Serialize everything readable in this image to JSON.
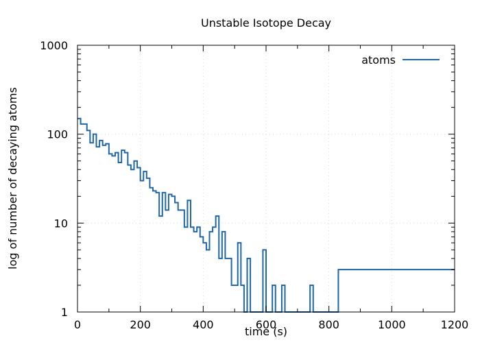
{
  "chart_data": {
    "type": "line",
    "title": "Unstable Isotope Decay",
    "xlabel": "time (s)",
    "ylabel": "log of number of decaying atoms",
    "xlim": [
      0,
      1200
    ],
    "ylim": [
      1,
      1000
    ],
    "yscale": "log",
    "x_ticks": [
      0,
      200,
      400,
      600,
      800,
      1000,
      1200
    ],
    "x_tick_labels": [
      "0",
      "200",
      "400",
      "600",
      "800",
      "1000",
      "1200"
    ],
    "y_ticks": [
      1,
      10,
      100,
      1000
    ],
    "y_tick_labels": [
      "1",
      "10",
      "100",
      "1000"
    ],
    "grid": true,
    "legend_position": "top-right",
    "series": [
      {
        "name": "atoms",
        "color": "#1f66a8",
        "step": "histogram",
        "x": [
          0,
          10,
          20,
          30,
          40,
          50,
          60,
          70,
          80,
          90,
          100,
          110,
          120,
          130,
          140,
          150,
          160,
          170,
          180,
          190,
          200,
          210,
          220,
          230,
          240,
          250,
          260,
          270,
          280,
          290,
          300,
          310,
          320,
          330,
          340,
          350,
          360,
          370,
          380,
          390,
          400,
          410,
          420,
          430,
          440,
          450,
          460,
          470,
          480,
          490,
          500,
          510,
          520,
          530,
          540,
          550,
          560,
          570,
          580,
          590,
          600,
          610,
          620,
          630,
          640,
          650,
          660,
          670,
          680,
          690,
          700,
          710,
          720,
          730,
          740,
          750,
          760,
          770,
          780,
          790,
          800,
          810,
          820,
          830
        ],
        "y": [
          150,
          130,
          130,
          110,
          80,
          100,
          72,
          85,
          75,
          78,
          60,
          57,
          62,
          48,
          66,
          62,
          45,
          40,
          50,
          42,
          30,
          38,
          32,
          25,
          23,
          22,
          12,
          22,
          14,
          21,
          20,
          17,
          14,
          14,
          9,
          18,
          9,
          8,
          9,
          7,
          6,
          5,
          8,
          9,
          12,
          4,
          8,
          4,
          4,
          2,
          2,
          6,
          2,
          1,
          4,
          1,
          1,
          1,
          1,
          5,
          1,
          1,
          2,
          1,
          1,
          2,
          1,
          1,
          1,
          1,
          1,
          1,
          1,
          1,
          2,
          1,
          1,
          1,
          1,
          1,
          1,
          1,
          1,
          3
        ]
      }
    ]
  }
}
